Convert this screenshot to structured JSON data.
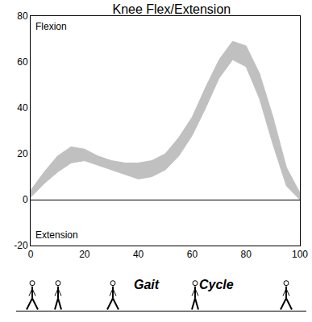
{
  "chart_data": {
    "type": "band",
    "title": "Knee Flex/Extension",
    "x": [
      0,
      5,
      10,
      15,
      20,
      25,
      30,
      35,
      40,
      45,
      50,
      55,
      60,
      65,
      70,
      75,
      80,
      85,
      90,
      95,
      100
    ],
    "series": [
      {
        "values": [
          4,
          12,
          19,
          23,
          22,
          19,
          17,
          16,
          16,
          17,
          20,
          27,
          36,
          49,
          61,
          69,
          67,
          55,
          36,
          14,
          3
        ]
      },
      {
        "values": [
          1,
          7,
          12,
          16,
          17,
          15,
          13,
          11,
          9,
          10,
          13,
          19,
          28,
          40,
          53,
          61,
          58,
          44,
          24,
          6,
          0
        ]
      }
    ],
    "color": "#c0c0c0",
    "xlim": [
      0,
      100
    ],
    "xticks": [
      0,
      20,
      40,
      60,
      80,
      100
    ],
    "ylim": [
      -20,
      80
    ],
    "yticks": [
      -20,
      0,
      20,
      40,
      60,
      80
    ],
    "grid": false,
    "annotations": {
      "upper": "Flexion",
      "lower": "Extension",
      "footer": [
        "Gait",
        "Cycle"
      ]
    }
  }
}
